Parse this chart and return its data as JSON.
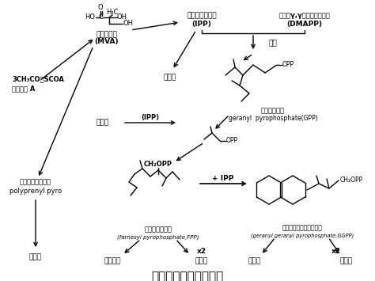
{
  "title": "萜类化合物的生源途径",
  "title_fontsize": 11,
  "bg_color": "#ffffff",
  "text_color": "#000000",
  "labels": {
    "mva_name": "甲戊二羟酸",
    "mva_abbr": "(MVA)",
    "ipp_name": "焦磷酸异戊烯酯",
    "ipp_abbr": "(IPP)",
    "dmapp_name": "焦磷酸γ,γ－二甲基丙烯酯",
    "dmapp_abbr": "(DMAPP)",
    "acetyl": "3CH₃CO－SCOA",
    "acetyl2": "乙酰辅酶 A",
    "hemi": "半萜类",
    "juhe": "聚合",
    "gpp_name": "焦磷酸香叶酯",
    "gpp_abbr": "geranyl  pyrophosphate(GPP)",
    "mono": "单萜类",
    "ipp_label": "(IPP)",
    "polyprenyl1": "焦磷酸多聚戊烯酯",
    "polyprenyl2": "polyprenyl pyro",
    "fpp_name": "焦磷酸金合欢酯",
    "fpp_abbr": "(farnesyl pyrophosphate,FPP)",
    "ggpp_name": "焦磷酸香叶醇基香叶醇酯",
    "ggpp_abbr": "(geranyl geranyl pyrophosphate,GGPP)",
    "plus_ipp": "+ IPP",
    "ch2opp": "CH₂OPP",
    "opp": "OPP",
    "polyterpene": "多萜类",
    "sesqui": "倍半萜类",
    "tri": "三萜类",
    "x2a": "x2",
    "di": "二萜类",
    "tetra": "四萜类",
    "x2b": "x2"
  }
}
